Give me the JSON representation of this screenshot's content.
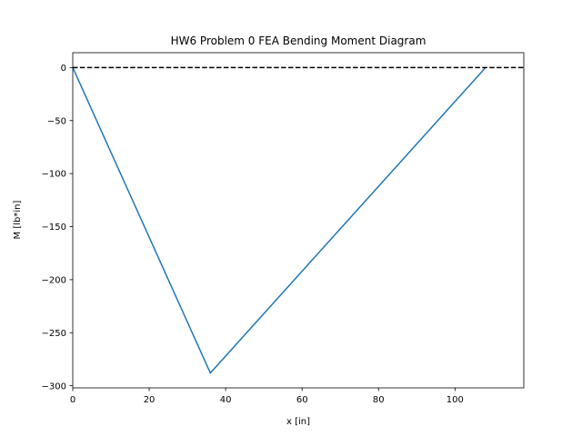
{
  "chart_data": {
    "type": "line",
    "title": "HW6 Problem 0 FEA Bending Moment Diagram",
    "xlabel": "x [in]",
    "ylabel": "M [lb*in]",
    "xlim": [
      0,
      118
    ],
    "ylim": [
      -302,
      14
    ],
    "xticks": [
      0,
      20,
      40,
      60,
      80,
      100
    ],
    "yticks": [
      0,
      -50,
      -100,
      -150,
      -200,
      -250,
      -300
    ],
    "grid": false,
    "series": [
      {
        "color": "#1f77b4",
        "style": "solid",
        "x": [
          0,
          36,
          108
        ],
        "y": [
          0,
          -288,
          0
        ]
      },
      {
        "color": "#000000",
        "style": "dashed",
        "x": [
          0,
          118
        ],
        "y": [
          0,
          0
        ]
      }
    ]
  }
}
